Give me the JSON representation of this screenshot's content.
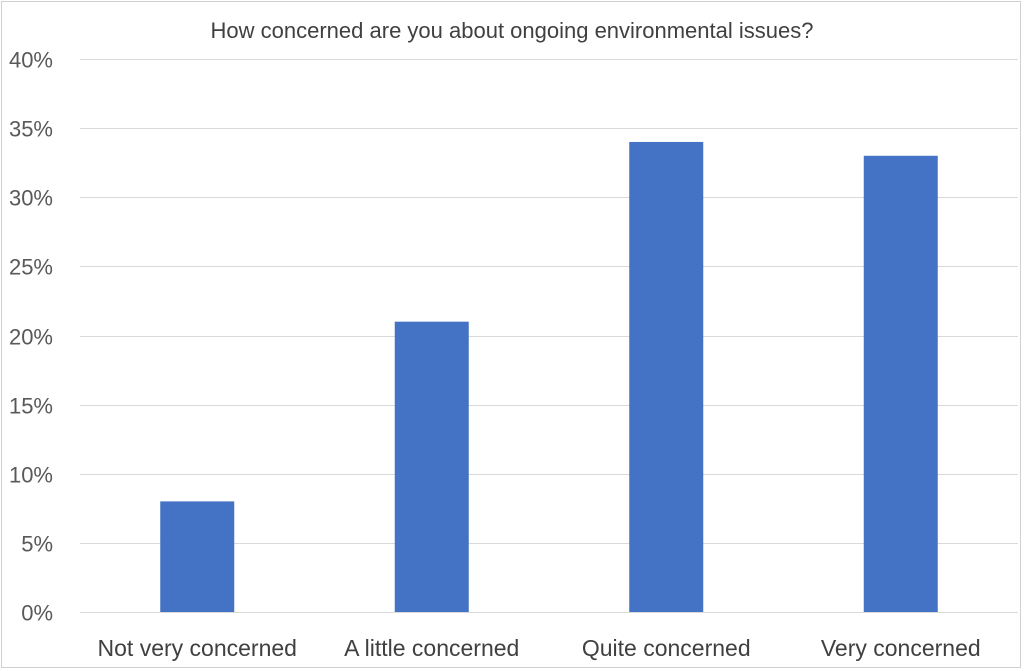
{
  "chart_data": {
    "type": "bar",
    "title": "How concerned are you about ongoing environmental issues?",
    "xlabel": "",
    "ylabel": "",
    "categories": [
      "Not very concerned",
      "A little concerned",
      "Quite concerned",
      "Very concerned"
    ],
    "values": [
      8,
      21,
      34,
      33
    ],
    "ylim": [
      0,
      40
    ],
    "yticks": [
      0,
      5,
      10,
      15,
      20,
      25,
      30,
      35,
      40
    ],
    "ytick_labels": [
      "0%",
      "5%",
      "10%",
      "15%",
      "20%",
      "25%",
      "30%",
      "35%",
      "40%"
    ],
    "grid": true,
    "legend": "none",
    "bar_color": "#4472C4"
  }
}
